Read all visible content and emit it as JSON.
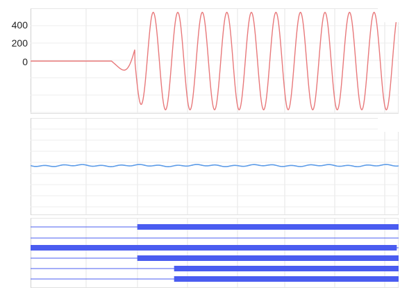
{
  "signal_panel": {
    "y_labels": [
      {
        "text": "400",
        "value": 400
      },
      {
        "text": "200",
        "value": 200
      },
      {
        "text": "0",
        "value": 0
      }
    ],
    "trace_color": "#e8787a",
    "flat_until_fraction": 0.22,
    "onset_fraction": 0.3,
    "cycles_visible": 10.5,
    "peak_value": 540,
    "trough_value": -540
  },
  "flat_panel": {
    "trace_color": "#5b9be8",
    "level_fraction": 0.49
  },
  "logic_panel": {
    "bar_color": "#4a5cf0",
    "line_color": "#4a5cf0",
    "channels": [
      {
        "high_from_fraction": 0.29
      },
      {
        "high_from_fraction": null
      },
      {
        "high_from_fraction": 0.0,
        "high_to_fraction": 0.995
      },
      {
        "high_from_fraction": 0.29
      },
      {
        "high_from_fraction": 0.39
      },
      {
        "high_from_fraction": 0.39
      }
    ]
  }
}
